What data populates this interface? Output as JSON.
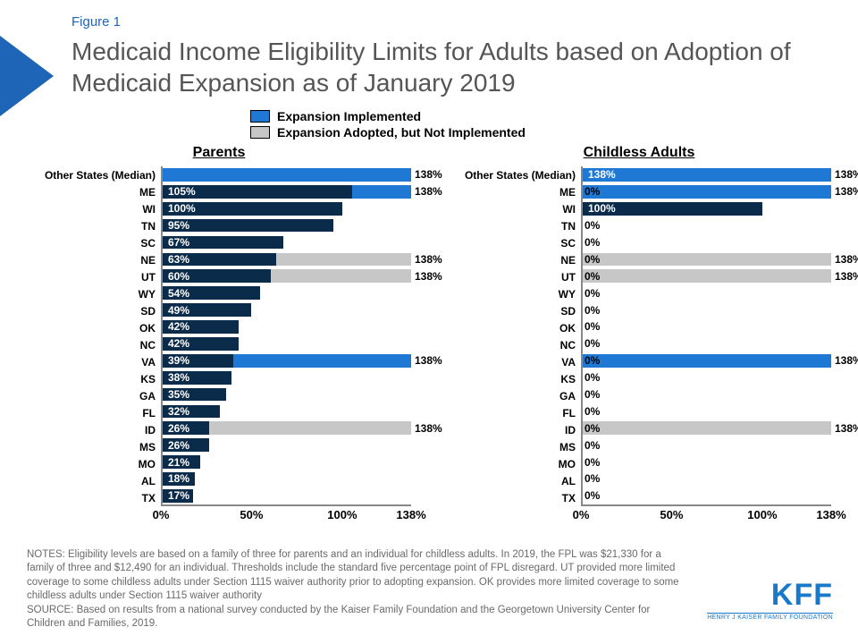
{
  "figure_label": "Figure 1",
  "title": "Medicaid Income Eligibility Limits for Adults based on Adoption of Medicaid Expansion as of January 2019",
  "colors": {
    "expansion_implemented": "#1e78d4",
    "expansion_adopted": "#c7c7c7",
    "current_limit": "#0b2b4a",
    "title_text": "#555555",
    "accent": "#1e65b8",
    "axis": "#888888",
    "notes_text": "#6a6a6a",
    "background": "#ffffff"
  },
  "legend": [
    {
      "label": "Expansion Implemented",
      "color_key": "expansion_implemented"
    },
    {
      "label": "Expansion Adopted, but Not Implemented",
      "color_key": "expansion_adopted"
    }
  ],
  "axis": {
    "xmax": 138,
    "ticks": [
      0,
      50,
      100,
      138
    ],
    "tick_labels": [
      "0%",
      "50%",
      "100%",
      "138%"
    ]
  },
  "typography": {
    "title_fontsize": 28,
    "panel_title_fontsize": 16,
    "row_label_fontsize": 12,
    "bar_label_fontsize": 12,
    "tick_fontsize": 13,
    "notes_fontsize": 11.5
  },
  "panels": [
    {
      "title": "Parents",
      "rows": [
        {
          "label": "Other States (Median)",
          "current": null,
          "expansion": 138,
          "expansion_type": "implemented",
          "show_outside_label": true
        },
        {
          "label": "ME",
          "current": 105,
          "expansion": 138,
          "expansion_type": "implemented",
          "show_outside_label": true
        },
        {
          "label": "WI",
          "current": 100,
          "expansion": null
        },
        {
          "label": "TN",
          "current": 95,
          "expansion": null
        },
        {
          "label": "SC",
          "current": 67,
          "expansion": null
        },
        {
          "label": "NE",
          "current": 63,
          "expansion": 138,
          "expansion_type": "adopted",
          "show_outside_label": true
        },
        {
          "label": "UT",
          "current": 60,
          "expansion": 138,
          "expansion_type": "adopted",
          "show_outside_label": true
        },
        {
          "label": "WY",
          "current": 54,
          "expansion": null
        },
        {
          "label": "SD",
          "current": 49,
          "expansion": null
        },
        {
          "label": "OK",
          "current": 42,
          "expansion": null
        },
        {
          "label": "NC",
          "current": 42,
          "expansion": null
        },
        {
          "label": "VA",
          "current": 39,
          "expansion": 138,
          "expansion_type": "implemented",
          "show_outside_label": true
        },
        {
          "label": "KS",
          "current": 38,
          "expansion": null
        },
        {
          "label": "GA",
          "current": 35,
          "expansion": null
        },
        {
          "label": "FL",
          "current": 32,
          "expansion": null
        },
        {
          "label": "ID",
          "current": 26,
          "expansion": 138,
          "expansion_type": "adopted",
          "show_outside_label": true
        },
        {
          "label": "MS",
          "current": 26,
          "expansion": null
        },
        {
          "label": "MO",
          "current": 21,
          "expansion": null
        },
        {
          "label": "AL",
          "current": 18,
          "expansion": null
        },
        {
          "label": "TX",
          "current": 17,
          "expansion": null
        }
      ]
    },
    {
      "title": "Childless Adults",
      "rows": [
        {
          "label": "Other States (Median)",
          "current": 138,
          "current_color_key": "expansion_implemented",
          "expansion": 138,
          "expansion_type": "implemented",
          "show_outside_label": true
        },
        {
          "label": "ME",
          "current": 0,
          "expansion": 138,
          "expansion_type": "implemented",
          "show_outside_label": true
        },
        {
          "label": "WI",
          "current": 100,
          "expansion": null
        },
        {
          "label": "TN",
          "current": 0,
          "expansion": null
        },
        {
          "label": "SC",
          "current": 0,
          "expansion": null
        },
        {
          "label": "NE",
          "current": 0,
          "expansion": 138,
          "expansion_type": "adopted",
          "show_outside_label": true
        },
        {
          "label": "UT",
          "current": 0,
          "expansion": 138,
          "expansion_type": "adopted",
          "show_outside_label": true
        },
        {
          "label": "WY",
          "current": 0,
          "expansion": null
        },
        {
          "label": "SD",
          "current": 0,
          "expansion": null
        },
        {
          "label": "OK",
          "current": 0,
          "expansion": null
        },
        {
          "label": "NC",
          "current": 0,
          "expansion": null
        },
        {
          "label": "VA",
          "current": 0,
          "expansion": 138,
          "expansion_type": "implemented",
          "show_outside_label": true
        },
        {
          "label": "KS",
          "current": 0,
          "expansion": null
        },
        {
          "label": "GA",
          "current": 0,
          "expansion": null
        },
        {
          "label": "FL",
          "current": 0,
          "expansion": null
        },
        {
          "label": "ID",
          "current": 0,
          "expansion": 138,
          "expansion_type": "adopted",
          "show_outside_label": true
        },
        {
          "label": "MS",
          "current": 0,
          "expansion": null
        },
        {
          "label": "MO",
          "current": 0,
          "expansion": null
        },
        {
          "label": "AL",
          "current": 0,
          "expansion": null
        },
        {
          "label": "TX",
          "current": 0,
          "expansion": null
        }
      ]
    }
  ],
  "notes": "NOTES: Eligibility levels are based on a family of three for parents and an individual for childless adults. In 2019, the FPL was $21,330 for a family of three and $12,490 for an individual. Thresholds include the standard five percentage point of FPL disregard. UT provided more limited coverage to some childless adults under Section 1115 waiver authority prior to adopting expansion. OK provides more limited coverage to some childless adults under Section 1115 waiver authority",
  "source": "SOURCE: Based on results from a national survey conducted by the Kaiser Family Foundation and the Georgetown University Center for Children and Families, 2019.",
  "logo": {
    "big": "KFF",
    "small": "HENRY J KAISER FAMILY FOUNDATION"
  }
}
